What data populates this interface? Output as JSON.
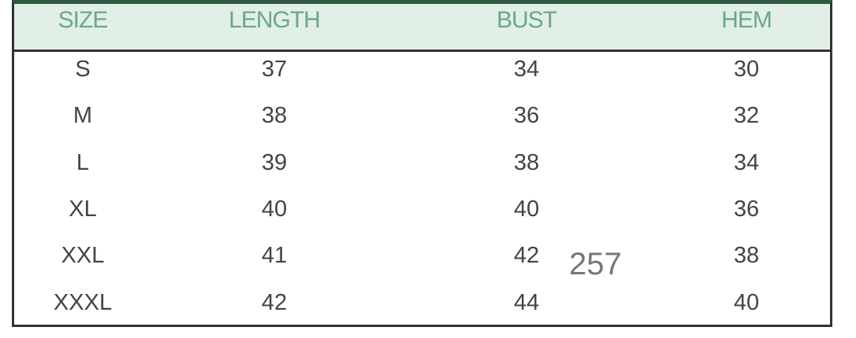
{
  "columns": [
    "SIZE",
    "LENGTH",
    "BUST",
    "HEM"
  ],
  "rows": [
    [
      "S",
      "37",
      "34",
      "30"
    ],
    [
      "M",
      "38",
      "36",
      "32"
    ],
    [
      "L",
      "39",
      "38",
      "34"
    ],
    [
      "XL",
      "40",
      "40",
      "36"
    ],
    [
      "XXL",
      "41",
      "42",
      "38"
    ],
    [
      "XXXL",
      "42",
      "44",
      "40"
    ]
  ],
  "overlay_text": "257",
  "colors": {
    "header_bg": "#e2efe7",
    "header_text": "#6aa888",
    "top_border": "#2f5a3f"
  }
}
